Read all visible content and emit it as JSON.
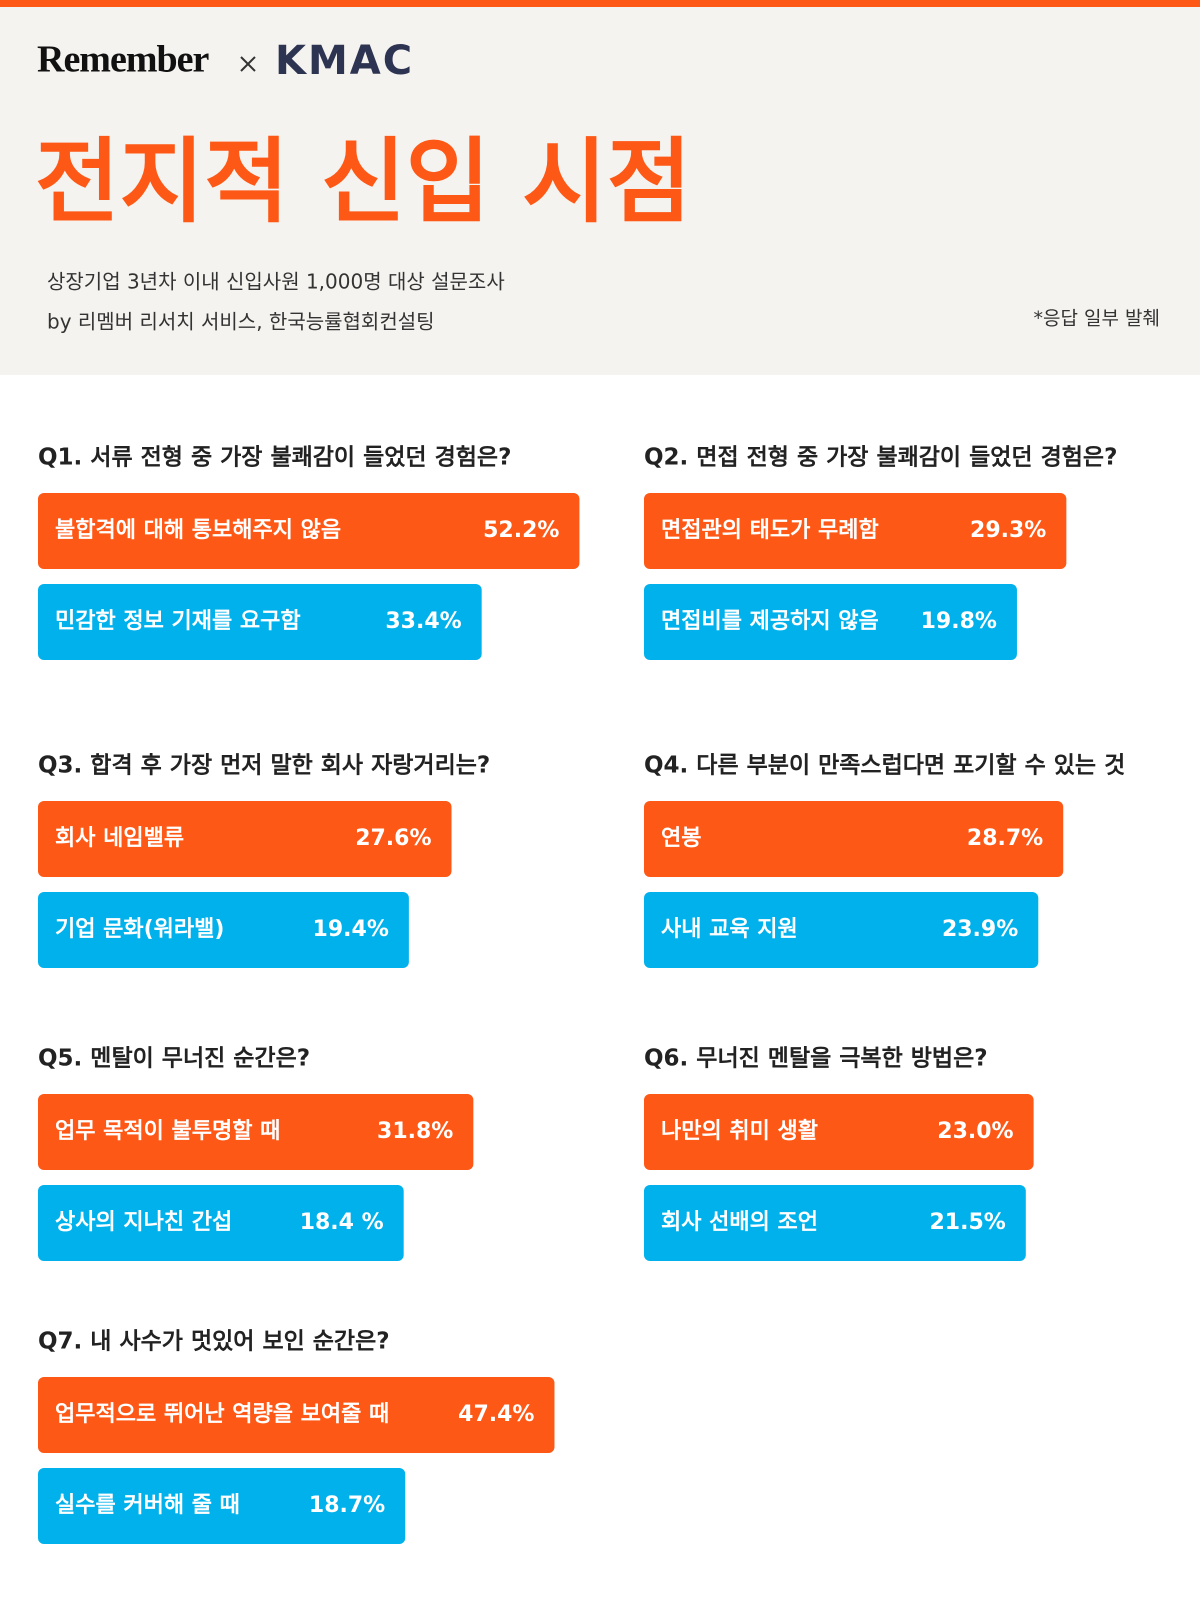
{
  "header": {
    "brand": "Remember",
    "partner": "KMAC",
    "title": "전지적 신입 시점",
    "subtitle": [
      "상장기업 3년차 이내 신입사원 1,000명 대상 설문조사",
      "by 리멤버 리서치 서비스, 한국능률협회컨설팅"
    ],
    "note": "*응답 일부 발췌"
  },
  "chart_data": [
    {
      "type": "bar",
      "title": "Q1. 서류 전형 중 가장 불쾌감이 들었던 경험은?",
      "categories": [
        "불합격에 대해 통보해주지 않음",
        "민감한 정보 기재를 요구함"
      ],
      "values": [
        52.2,
        33.4
      ],
      "value_labels": [
        "52.2%",
        "33.4%"
      ],
      "colors": [
        "#fe5816",
        "#00b1eb"
      ]
    },
    {
      "type": "bar",
      "title": "Q2. 면접 전형 중 가장 불쾌감이 들었던 경험은?",
      "categories": [
        "면접관의 태도가 무례함",
        "면접비를 제공하지 않음"
      ],
      "values": [
        29.3,
        19.8
      ],
      "value_labels": [
        "29.3%",
        "19.8%"
      ],
      "colors": [
        "#fe5816",
        "#00b1eb"
      ]
    },
    {
      "type": "bar",
      "title": "Q3. 합격 후 가장 먼저 말한 회사 자랑거리는?",
      "categories": [
        "회사 네임밸류",
        "기업 문화(워라밸)"
      ],
      "values": [
        27.6,
        19.4
      ],
      "value_labels": [
        "27.6%",
        "19.4%"
      ],
      "colors": [
        "#fe5816",
        "#00b1eb"
      ]
    },
    {
      "type": "bar",
      "title": "Q4. 다른 부분이 만족스럽다면 포기할 수 있는 것",
      "categories": [
        "연봉",
        "사내 교육 지원"
      ],
      "values": [
        28.7,
        23.9
      ],
      "value_labels": [
        "28.7%",
        "23.9%"
      ],
      "colors": [
        "#fe5816",
        "#00b1eb"
      ]
    },
    {
      "type": "bar",
      "title": "Q5. 멘탈이 무너진 순간은?",
      "categories": [
        "업무 목적이 불투명할 때",
        "상사의 지나친 간섭"
      ],
      "values": [
        31.8,
        18.4
      ],
      "value_labels": [
        "31.8%",
        "18.4 %"
      ],
      "colors": [
        "#fe5816",
        "#00b1eb"
      ]
    },
    {
      "type": "bar",
      "title": "Q6. 무너진 멘탈을 극복한 방법은?",
      "categories": [
        "나만의 취미 생활",
        "회사 선배의 조언"
      ],
      "values": [
        23.0,
        21.5
      ],
      "value_labels": [
        "23.0%",
        "21.5%"
      ],
      "colors": [
        "#fe5816",
        "#00b1eb"
      ]
    },
    {
      "type": "bar",
      "title": "Q7. 내 사수가 멋있어 보인 순간은?",
      "categories": [
        "업무적으로 뛰어난 역량을 보여줄 때",
        "실수를 커버해 줄 때"
      ],
      "values": [
        47.4,
        18.7
      ],
      "value_labels": [
        "47.4%",
        "18.7%"
      ],
      "colors": [
        "#fe5816",
        "#00b1eb"
      ]
    }
  ]
}
